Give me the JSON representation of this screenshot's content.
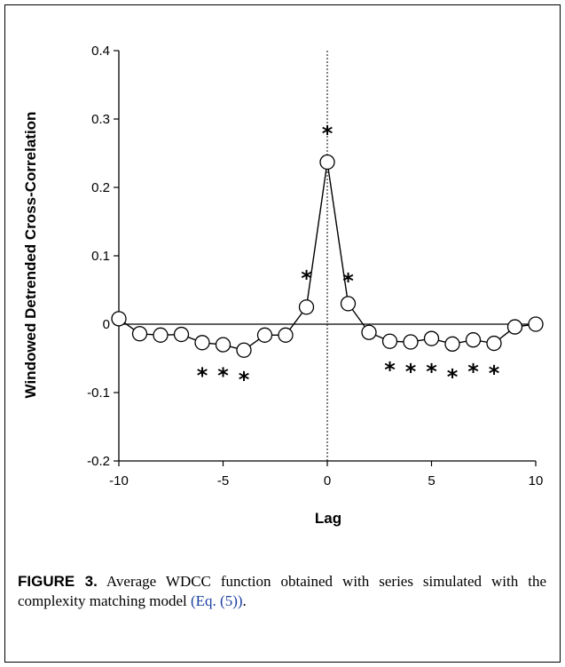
{
  "chart_data": {
    "type": "line",
    "xlabel": "Lag",
    "ylabel": "Windowed Detrended Cross-Correlation",
    "xlim": [
      -10,
      10
    ],
    "ylim": [
      -0.2,
      0.4
    ],
    "xticks": [
      -10,
      -5,
      0,
      5,
      10
    ],
    "yticks": [
      -0.2,
      -0.1,
      0,
      0.1,
      0.2,
      0.3,
      0.4
    ],
    "xtick_labels": [
      "-10",
      "-5",
      "0",
      "5",
      "10"
    ],
    "ytick_labels": [
      "-0.2",
      "-0.1",
      "0",
      "0.1",
      "0.2",
      "0.3",
      "0.4"
    ],
    "x": [
      -10,
      -9,
      -8,
      -7,
      -6,
      -5,
      -4,
      -3,
      -2,
      -1,
      0,
      1,
      2,
      3,
      4,
      5,
      6,
      7,
      8,
      9,
      10
    ],
    "y": [
      0.008,
      -0.014,
      -0.016,
      -0.015,
      -0.027,
      -0.03,
      -0.038,
      -0.016,
      -0.016,
      0.025,
      0.237,
      0.03,
      -0.012,
      -0.025,
      -0.026,
      -0.021,
      -0.029,
      -0.023,
      -0.028,
      -0.004,
      0.0
    ],
    "significant": [
      {
        "x": -6,
        "y": -0.07,
        "label": "*"
      },
      {
        "x": -5,
        "y": -0.07,
        "label": "*"
      },
      {
        "x": -4,
        "y": -0.076,
        "label": "*"
      },
      {
        "x": -1,
        "y": 0.072,
        "label": "*"
      },
      {
        "x": 0,
        "y": 0.284,
        "label": "*"
      },
      {
        "x": 1,
        "y": 0.068,
        "label": "*"
      },
      {
        "x": 3,
        "y": -0.062,
        "label": "*"
      },
      {
        "x": 4,
        "y": -0.064,
        "label": "*"
      },
      {
        "x": 5,
        "y": -0.064,
        "label": "*"
      },
      {
        "x": 6,
        "y": -0.072,
        "label": "*"
      },
      {
        "x": 7,
        "y": -0.064,
        "label": "*"
      },
      {
        "x": 8,
        "y": -0.067,
        "label": "*"
      }
    ],
    "zero_line": true,
    "vertical_dotted_line_at_x": 0,
    "grid": false,
    "marker": "open-circle"
  },
  "caption": {
    "label": "FIGURE 3.",
    "text": " Average WDCC function obtained with series simulated with the complexity matching model ",
    "ref": "(Eq. (5))",
    "tail": "."
  }
}
